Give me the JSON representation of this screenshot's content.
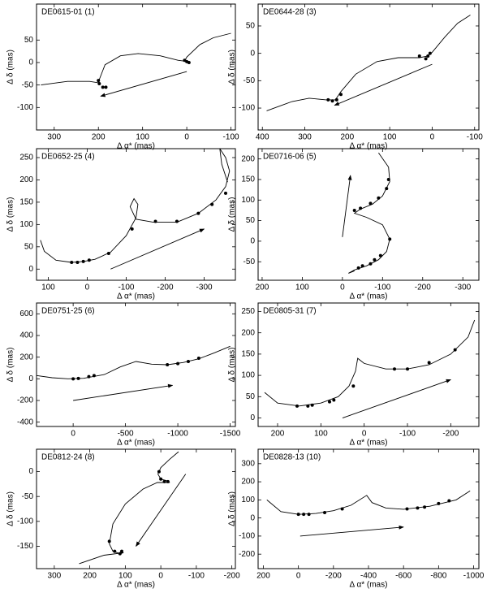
{
  "chart_data": [
    {
      "type": "line",
      "title": "DE0615-01  (1)",
      "xlabel": "Δ α* (mas)",
      "ylabel": "Δ δ (mas)",
      "xlim": [
        340,
        -110
      ],
      "xticks": [
        300,
        200,
        100,
        0,
        -100
      ],
      "ylim": [
        -150,
        130
      ],
      "yticks": [
        -100,
        -50,
        0,
        50
      ],
      "curve": {
        "x": [
          330,
          270,
          220,
          200,
          198,
          185,
          150,
          110,
          60,
          20,
          5,
          0,
          -30,
          -60,
          -100
        ],
        "y": [
          -50,
          -42,
          -42,
          -45,
          -38,
          -5,
          15,
          20,
          15,
          5,
          3,
          12,
          40,
          55,
          65
        ]
      },
      "points": {
        "x": [
          200,
          198,
          190,
          183,
          5,
          0,
          -5
        ],
        "y": [
          -40,
          -47,
          -55,
          -55,
          5,
          2,
          0
        ]
      },
      "arrow": {
        "x": [
          0,
          195
        ],
        "y": [
          -20,
          -75
        ]
      }
    },
    {
      "type": "line",
      "title": "DE0644-28  (3)",
      "xlabel": "Δ α* (mas)",
      "ylabel": "Δ δ (mas)",
      "xlim": [
        410,
        -110
      ],
      "xticks": [
        400,
        300,
        200,
        100,
        0,
        -100
      ],
      "ylim": [
        -140,
        90
      ],
      "yticks": [
        -100,
        -50,
        0,
        50
      ],
      "curve": {
        "x": [
          390,
          330,
          290,
          250,
          228,
          215,
          180,
          130,
          80,
          30,
          10,
          0,
          -30,
          -60,
          -90
        ],
        "y": [
          -105,
          -88,
          -82,
          -85,
          -85,
          -70,
          -38,
          -15,
          -8,
          -8,
          -5,
          2,
          30,
          55,
          70
        ]
      },
      "points": {
        "x": [
          245,
          235,
          225,
          215,
          30,
          15,
          10,
          5
        ],
        "y": [
          -85,
          -87,
          -85,
          -75,
          -5,
          -10,
          -5,
          0
        ]
      },
      "arrow": {
        "x": [
          0,
          230
        ],
        "y": [
          -20,
          -95
        ]
      }
    },
    {
      "type": "line",
      "title": "DE0652-25  (4)",
      "xlabel": "Δ α* (mas)",
      "ylabel": "Δ δ (mas)",
      "xlim": [
        130,
        -380
      ],
      "xticks": [
        100,
        0,
        -100,
        -200,
        -300
      ],
      "ylim": [
        -25,
        270
      ],
      "yticks": [
        0,
        50,
        100,
        150,
        200,
        250
      ],
      "curve": {
        "x": [
          120,
          110,
          80,
          40,
          10,
          -20,
          -60,
          -100,
          -125,
          -130,
          -120,
          -110,
          -125,
          -170,
          -230,
          -285,
          -330,
          -355,
          -365,
          -355,
          -340,
          -345,
          -360
        ],
        "y": [
          65,
          40,
          20,
          15,
          17,
          22,
          38,
          75,
          115,
          145,
          158,
          140,
          112,
          105,
          105,
          125,
          155,
          185,
          220,
          250,
          270,
          235,
          195
        ]
      },
      "points": {
        "x": [
          40,
          25,
          10,
          -5,
          -55,
          -115,
          -175,
          -230,
          -285,
          -320,
          -355
        ],
        "y": [
          15,
          15,
          17,
          20,
          35,
          90,
          107,
          107,
          125,
          145,
          170
        ]
      },
      "arrow": {
        "x": [
          -60,
          -300
        ],
        "y": [
          0,
          90
        ]
      }
    },
    {
      "type": "line",
      "title": "DE0716-06  (5)",
      "xlabel": "Δ α* (mas)",
      "ylabel": "Δ δ (mas)",
      "xlim": [
        210,
        -340
      ],
      "xticks": [
        200,
        100,
        0,
        -100,
        -200,
        -300
      ],
      "ylim": [
        -95,
        225
      ],
      "yticks": [
        -50,
        0,
        50,
        100,
        150,
        200
      ],
      "curve": {
        "x": [
          -90,
          -115,
          -118,
          -100,
          -75,
          -45,
          -30,
          -60,
          -100,
          -118,
          -110,
          -90,
          -60,
          -30,
          -15,
          -30
        ],
        "y": [
          215,
          180,
          145,
          110,
          90,
          78,
          68,
          58,
          40,
          5,
          -25,
          -45,
          -60,
          -70,
          -78,
          -72
        ]
      },
      "points": {
        "x": [
          -115,
          -110,
          -90,
          -70,
          -45,
          -30,
          -118,
          -95,
          -80,
          -70,
          -50,
          -40
        ],
        "y": [
          150,
          128,
          105,
          92,
          80,
          75,
          5,
          -35,
          -45,
          -55,
          -60,
          -65
        ]
      },
      "arrow": {
        "x": [
          0,
          -20
        ],
        "y": [
          10,
          160
        ]
      }
    },
    {
      "type": "line",
      "title": "DE0751-25  (6)",
      "xlabel": "Δ α* (mas)",
      "ylabel": "Δ δ (mas)",
      "xlim": [
        350,
        -1550
      ],
      "xticks": [
        0,
        -500,
        -1000,
        -1500
      ],
      "ylim": [
        -440,
        700
      ],
      "yticks": [
        -400,
        -200,
        0,
        200,
        400,
        600
      ],
      "curve": {
        "x": [
          350,
          200,
          50,
          -100,
          -300,
          -450,
          -600,
          -750,
          -900,
          -1050,
          -1200,
          -1350,
          -1500
        ],
        "y": [
          30,
          10,
          0,
          5,
          40,
          110,
          160,
          135,
          130,
          150,
          185,
          240,
          300
        ]
      },
      "points": {
        "x": [
          0,
          -50,
          -150,
          -200,
          -900,
          -1000,
          -1100,
          -1200
        ],
        "y": [
          0,
          3,
          20,
          30,
          130,
          140,
          160,
          190
        ]
      },
      "arrow": {
        "x": [
          0,
          -950
        ],
        "y": [
          -200,
          -60
        ]
      }
    },
    {
      "type": "line",
      "title": "DE0805-31  (7)",
      "xlabel": "Δ α* (mas)",
      "ylabel": "Δ δ (mas)",
      "xlim": [
        245,
        -265
      ],
      "xticks": [
        200,
        100,
        0,
        -100,
        -200
      ],
      "ylim": [
        -20,
        270
      ],
      "yticks": [
        0,
        50,
        100,
        150,
        200,
        250
      ],
      "curve": {
        "x": [
          230,
          200,
          150,
          100,
          60,
          35,
          20,
          15,
          0,
          -50,
          -100,
          -150,
          -200,
          -240,
          -255
        ],
        "y": [
          60,
          35,
          28,
          35,
          50,
          75,
          110,
          140,
          128,
          115,
          115,
          125,
          150,
          190,
          230
        ]
      },
      "points": {
        "x": [
          155,
          130,
          120,
          80,
          70,
          25,
          -70,
          -100,
          -150,
          -210
        ],
        "y": [
          28,
          28,
          30,
          38,
          42,
          75,
          115,
          115,
          130,
          160
        ]
      },
      "arrow": {
        "x": [
          50,
          -200
        ],
        "y": [
          0,
          90
        ]
      }
    },
    {
      "type": "line",
      "title": "DE0812-24  (8)",
      "xlabel": "Δ α* (mas)",
      "ylabel": "Δ δ (mas)",
      "xlim": [
        350,
        -210
      ],
      "xticks": [
        300,
        200,
        100,
        0,
        -100,
        -200
      ],
      "ylim": [
        -195,
        45
      ],
      "yticks": [
        -150,
        -100,
        -50,
        0
      ],
      "curve": {
        "x": [
          -50,
          -25,
          0,
          8,
          0,
          -15,
          -25,
          10,
          50,
          100,
          135,
          145,
          135,
          115,
          105,
          160,
          230
        ],
        "y": [
          40,
          25,
          8,
          -5,
          -15,
          -18,
          -22,
          -22,
          -35,
          -65,
          -105,
          -145,
          -160,
          -165,
          -163,
          -168,
          -185
        ]
      },
      "points": {
        "x": [
          5,
          0,
          -10,
          -20,
          145,
          130,
          115,
          110
        ],
        "y": [
          0,
          -15,
          -20,
          -20,
          -140,
          -160,
          -165,
          -160
        ]
      },
      "arrow": {
        "x": [
          -70,
          70
        ],
        "y": [
          -5,
          -150
        ]
      }
    },
    {
      "type": "line",
      "title": "DE0828-13  (10)",
      "xlabel": "Δ α* (mas)",
      "ylabel": "Δ δ (mas)",
      "xlim": [
        230,
        -1030
      ],
      "xticks": [
        200,
        0,
        -200,
        -400,
        -600,
        -800,
        -1000
      ],
      "ylim": [
        -280,
        380
      ],
      "yticks": [
        -200,
        -100,
        0,
        100,
        200,
        300
      ],
      "curve": {
        "x": [
          180,
          100,
          0,
          -100,
          -200,
          -300,
          -390,
          -420,
          -500,
          -600,
          -750,
          -900,
          -980
        ],
        "y": [
          100,
          35,
          20,
          25,
          40,
          70,
          125,
          85,
          55,
          48,
          65,
          100,
          150
        ]
      },
      "points": {
        "x": [
          0,
          -30,
          -60,
          -150,
          -250,
          -620,
          -680,
          -720,
          -800,
          -860
        ],
        "y": [
          20,
          20,
          20,
          30,
          50,
          50,
          55,
          60,
          80,
          95
        ]
      },
      "arrow": {
        "x": [
          -10,
          -600
        ],
        "y": [
          -100,
          -50
        ]
      }
    }
  ]
}
